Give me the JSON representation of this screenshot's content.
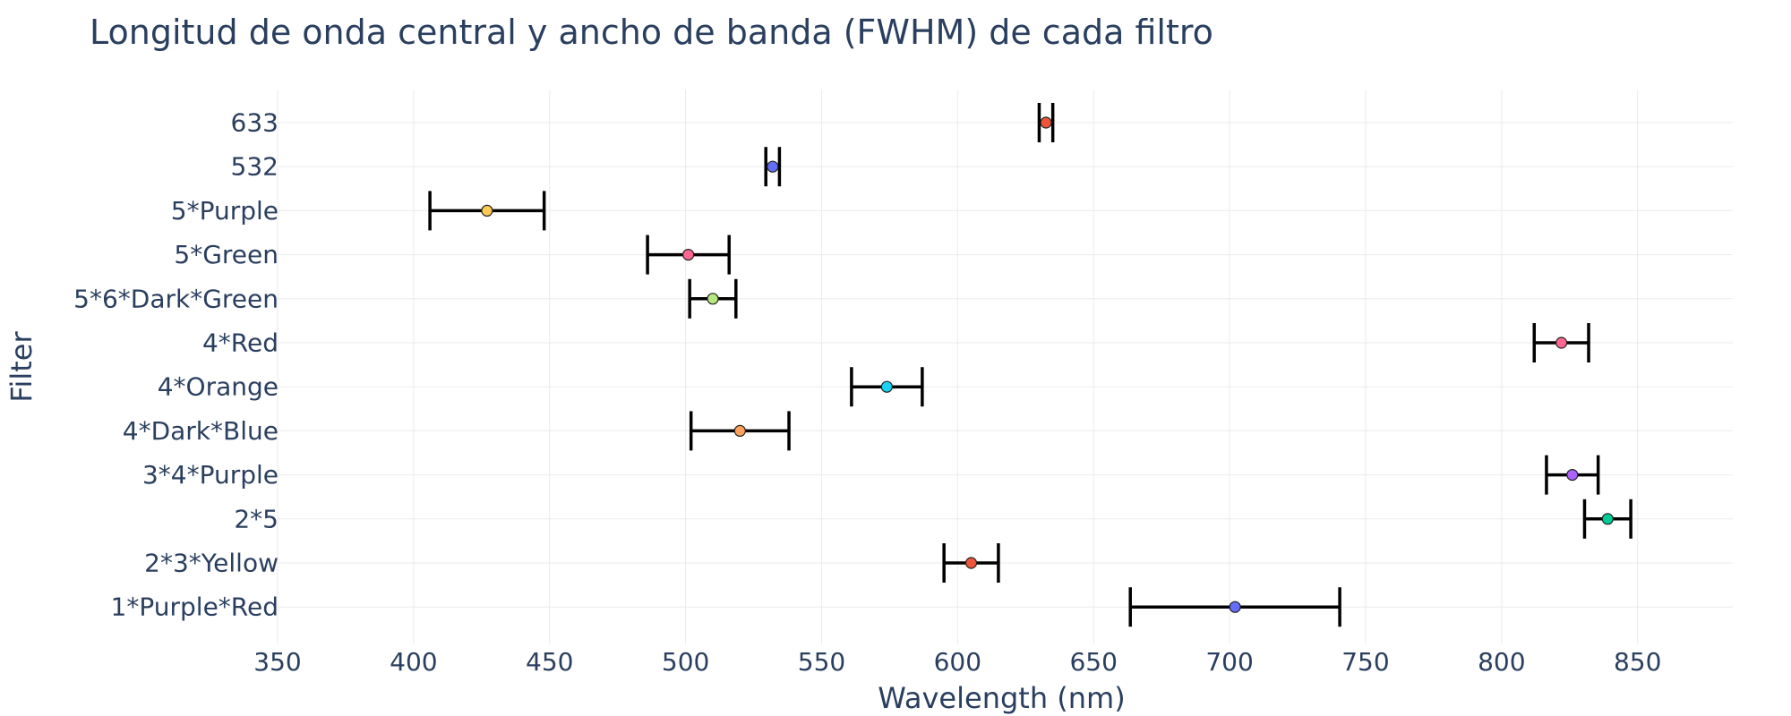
{
  "chart_data": {
    "type": "scatter",
    "title": "Longitud de onda central y ancho de banda (FWHM) de cada filtro",
    "xlabel": "Wavelength (nm)",
    "ylabel": "Filter",
    "xlim": [
      350,
      885
    ],
    "xticks": [
      "350",
      "400",
      "450",
      "500",
      "550",
      "600",
      "650",
      "700",
      "750",
      "800",
      "850"
    ],
    "grid": true,
    "legend": "none",
    "points": [
      {
        "filter": "633",
        "center": 632.5,
        "fwhm": 5,
        "color": "#ef553b"
      },
      {
        "filter": "532",
        "center": 532,
        "fwhm": 5,
        "color": "#636efa"
      },
      {
        "filter": "5*Purple",
        "center": 427,
        "fwhm": 42,
        "color": "#fecb52"
      },
      {
        "filter": "5*Green",
        "center": 501,
        "fwhm": 30,
        "color": "#ff6692"
      },
      {
        "filter": "5*6*Dark*Green",
        "center": 510,
        "fwhm": 17,
        "color": "#b6e880"
      },
      {
        "filter": "4*Red",
        "center": 822,
        "fwhm": 20,
        "color": "#ff6692"
      },
      {
        "filter": "4*Orange",
        "center": 574,
        "fwhm": 26,
        "color": "#19d3f3"
      },
      {
        "filter": "4*Dark*Blue",
        "center": 520,
        "fwhm": 36,
        "color": "#ffa15a"
      },
      {
        "filter": "3*4*Purple",
        "center": 826,
        "fwhm": 19,
        "color": "#ab63fa"
      },
      {
        "filter": "2*5",
        "center": 839,
        "fwhm": 17,
        "color": "#00cc96"
      },
      {
        "filter": "2*3*Yellow",
        "center": 605,
        "fwhm": 20,
        "color": "#ef553b"
      },
      {
        "filter": "1*Purple*Red",
        "center": 702,
        "fwhm": 77,
        "color": "#636efa"
      }
    ]
  }
}
